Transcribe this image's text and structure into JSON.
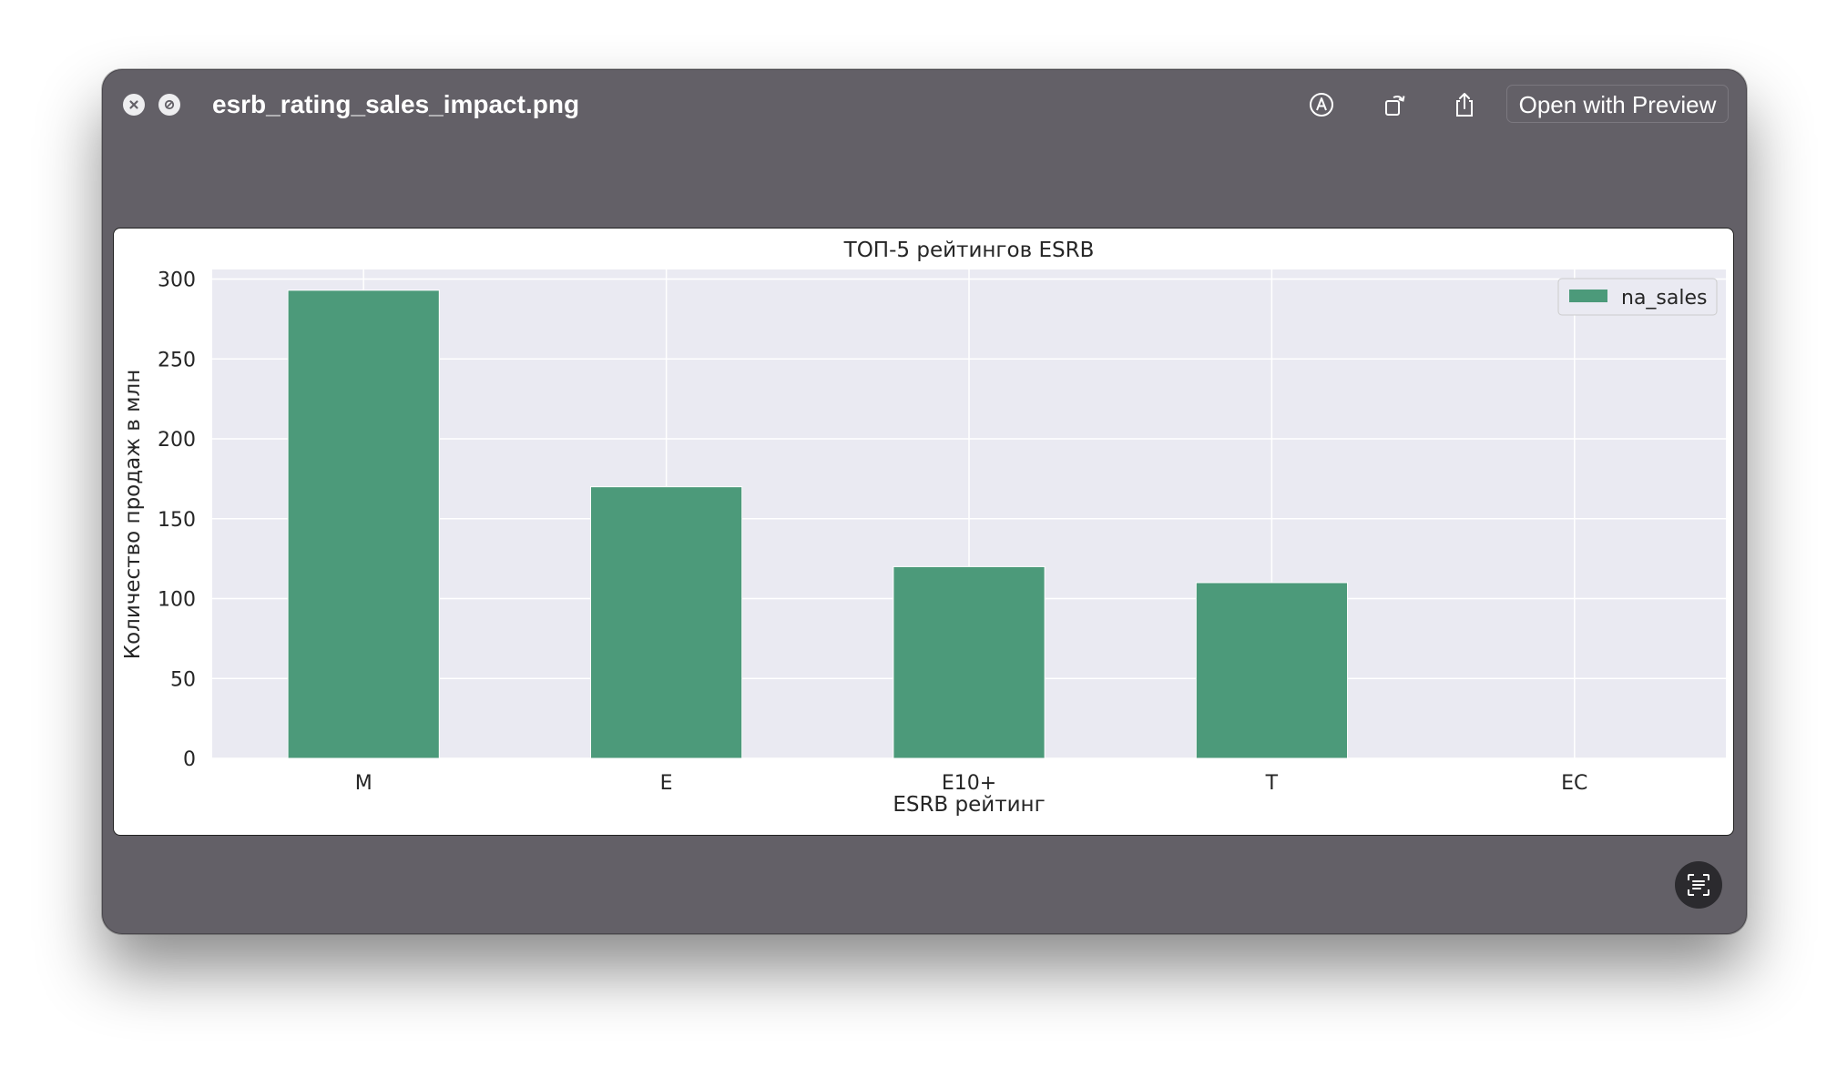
{
  "window": {
    "title": "esrb_rating_sales_impact.png",
    "open_with_label": "Open with Preview"
  },
  "icons": {
    "close": "close-icon",
    "hide": "hide-icon",
    "markup": "markup-icon",
    "rotate": "rotate-icon",
    "share": "share-icon",
    "live_text": "live-text-icon"
  },
  "colors": {
    "bar": "#4c9a7a",
    "plot_bg": "#eaeaf2",
    "window_bg": "#636067"
  },
  "chart_data": {
    "type": "bar",
    "title": "ТОП-5 рейтингов ESRB",
    "xlabel": "ESRB рейтинг",
    "ylabel": "Количество продаж в млн",
    "categories": [
      "M",
      "E",
      "E10+",
      "T",
      "EC"
    ],
    "series": [
      {
        "name": "na_sales",
        "values": [
          293,
          170,
          120,
          110,
          0
        ]
      }
    ],
    "ylim": [
      0,
      306
    ],
    "yticks": [
      0,
      50,
      100,
      150,
      200,
      250,
      300
    ],
    "grid": true,
    "legend": "top-right"
  }
}
